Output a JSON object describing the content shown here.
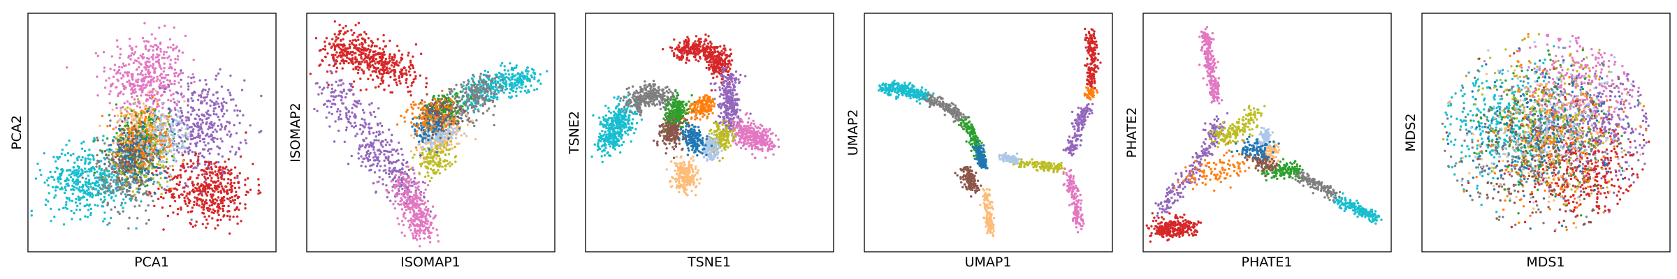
{
  "colors": [
    "#1f77b4",
    "#ff7f0e",
    "#2ca02c",
    "#d62728",
    "#9467bd",
    "#8c564b",
    "#e377c2",
    "#7f7f7f",
    "#bcbd22",
    "#17becf",
    "#aec7e8",
    "#ffbb78"
  ],
  "chart_data": [
    {
      "type": "scatter",
      "xlabel": "PCA1",
      "ylabel": "PCA2",
      "grid": false,
      "ticks": false,
      "xlim": [
        0,
        100
      ],
      "ylim": [
        0,
        100
      ],
      "clusters": [
        {
          "color": "#e377c2",
          "cx": 48,
          "cy": 73,
          "sx": 8,
          "sy": 9,
          "n": 420
        },
        {
          "color": "#9467bd",
          "cx": 70,
          "cy": 52,
          "sx": 8,
          "sy": 10,
          "n": 380
        },
        {
          "color": "#d62728",
          "cx": 73,
          "cy": 26,
          "sx": 9,
          "sy": 7,
          "n": 440
        },
        {
          "color": "#17becf",
          "cx": 25,
          "cy": 30,
          "sx": 9,
          "sy": 7,
          "n": 460
        },
        {
          "color": "#7f7f7f",
          "cx": 40,
          "cy": 33,
          "sx": 6,
          "sy": 8,
          "n": 300
        },
        {
          "color": "#bcbd22",
          "cx": 47,
          "cy": 45,
          "sx": 6,
          "sy": 8,
          "n": 250
        },
        {
          "color": "#ffbb78",
          "cx": 45,
          "cy": 50,
          "sx": 5,
          "sy": 6,
          "n": 180
        },
        {
          "color": "#2ca02c",
          "cx": 45,
          "cy": 45,
          "sx": 6,
          "sy": 7,
          "n": 160
        },
        {
          "color": "#8c564b",
          "cx": 42,
          "cy": 42,
          "sx": 5,
          "sy": 6,
          "n": 150
        },
        {
          "color": "#1f77b4",
          "cx": 46,
          "cy": 43,
          "sx": 6,
          "sy": 6,
          "n": 150
        },
        {
          "color": "#ff7f0e",
          "cx": 48,
          "cy": 47,
          "sx": 6,
          "sy": 6,
          "n": 140
        },
        {
          "color": "#aec7e8",
          "cx": 55,
          "cy": 48,
          "sx": 6,
          "sy": 6,
          "n": 140
        }
      ]
    },
    {
      "type": "scatter",
      "xlabel": "ISOMAP1",
      "ylabel": "ISOMAP2",
      "grid": false,
      "ticks": false,
      "xlim": [
        0,
        100
      ],
      "ylim": [
        0,
        100
      ],
      "clusters": [
        {
          "color": "#d62728",
          "path": [
            [
              10,
              86
            ],
            [
              25,
              82
            ],
            [
              40,
              74
            ]
          ],
          "spread": 4.5,
          "n": 500
        },
        {
          "color": "#9467bd",
          "path": [
            [
              10,
              70
            ],
            [
              22,
              52
            ],
            [
              32,
              38
            ],
            [
              42,
              22
            ]
          ],
          "spread": 4,
          "n": 380
        },
        {
          "color": "#e377c2",
          "path": [
            [
              38,
              30
            ],
            [
              44,
              18
            ],
            [
              48,
              8
            ]
          ],
          "spread": 3.2,
          "n": 330
        },
        {
          "color": "#17becf",
          "path": [
            [
              64,
              64
            ],
            [
              78,
              71
            ],
            [
              90,
              73
            ]
          ],
          "spread": 3,
          "n": 340
        },
        {
          "color": "#7f7f7f",
          "path": [
            [
              55,
              56
            ],
            [
              66,
              64
            ],
            [
              74,
              68
            ]
          ],
          "spread": 4,
          "n": 220
        },
        {
          "color": "#2ca02c",
          "path": [
            [
              52,
              56
            ],
            [
              58,
              62
            ]
          ],
          "spread": 3.5,
          "n": 170
        },
        {
          "color": "#ffbb78",
          "path": [
            [
              48,
              42
            ],
            [
              54,
              48
            ],
            [
              58,
              54
            ]
          ],
          "spread": 3,
          "n": 180
        },
        {
          "color": "#bcbd22",
          "path": [
            [
              48,
              36
            ],
            [
              55,
              42
            ]
          ],
          "spread": 2.8,
          "n": 130
        },
        {
          "color": "#aec7e8",
          "path": [
            [
              50,
              46
            ],
            [
              56,
              52
            ]
          ],
          "spread": 2.8,
          "n": 120
        },
        {
          "color": "#8c564b",
          "path": [
            [
              50,
              56
            ],
            [
              56,
              60
            ]
          ],
          "spread": 3,
          "n": 120
        },
        {
          "color": "#1f77b4",
          "path": [
            [
              46,
              50
            ],
            [
              56,
              56
            ]
          ],
          "spread": 3.5,
          "n": 120
        },
        {
          "color": "#ff7f0e",
          "path": [
            [
              45,
              55
            ],
            [
              56,
              60
            ]
          ],
          "spread": 4,
          "n": 110
        }
      ]
    },
    {
      "type": "scatter",
      "xlabel": "TSNE1",
      "ylabel": "TSNE2",
      "grid": false,
      "ticks": false,
      "xlim": [
        0,
        100
      ],
      "ylim": [
        0,
        100
      ],
      "clusters": [
        {
          "color": "#d62728",
          "path": [
            [
              36,
              84
            ],
            [
              46,
              86
            ],
            [
              54,
              82
            ],
            [
              54,
              74
            ]
          ],
          "spread": 2.3,
          "n": 420
        },
        {
          "color": "#9467bd",
          "path": [
            [
              57,
              74
            ],
            [
              58,
              62
            ],
            [
              58,
              52
            ]
          ],
          "spread": 2.2,
          "n": 320
        },
        {
          "color": "#e377c2",
          "path": [
            [
              62,
              52
            ],
            [
              68,
              48
            ],
            [
              73,
              45
            ]
          ],
          "spread": 2.6,
          "n": 320
        },
        {
          "color": "#17becf",
          "path": [
            [
              8,
              44
            ],
            [
              12,
              52
            ],
            [
              16,
              60
            ]
          ],
          "spread": 3,
          "n": 380
        },
        {
          "color": "#7f7f7f",
          "path": [
            [
              18,
              62
            ],
            [
              26,
              66
            ],
            [
              33,
              64
            ]
          ],
          "spread": 2.4,
          "n": 300
        },
        {
          "color": "#8c564b",
          "path": [
            [
              34,
              48
            ],
            [
              36,
              54
            ]
          ],
          "spread": 2.6,
          "n": 240
        },
        {
          "color": "#2ca02c",
          "path": [
            [
              36,
              56
            ],
            [
              38,
              62
            ]
          ],
          "spread": 2.2,
          "n": 180
        },
        {
          "color": "#ffbb78",
          "path": [
            [
              40,
              36
            ],
            [
              40,
              28
            ]
          ],
          "spread": 2.5,
          "n": 220
        },
        {
          "color": "#bcbd22",
          "path": [
            [
              54,
              44
            ],
            [
              55,
              52
            ]
          ],
          "spread": 2,
          "n": 180
        },
        {
          "color": "#aec7e8",
          "path": [
            [
              50,
              40
            ],
            [
              51,
              46
            ]
          ],
          "spread": 1.7,
          "n": 130
        },
        {
          "color": "#1f77b4",
          "path": [
            [
              42,
              50
            ],
            [
              46,
              44
            ]
          ],
          "spread": 2.1,
          "n": 150
        },
        {
          "color": "#ff7f0e",
          "path": [
            [
              44,
              60
            ],
            [
              50,
              62
            ]
          ],
          "spread": 2.2,
          "n": 150
        }
      ]
    },
    {
      "type": "scatter",
      "xlabel": "UMAP1",
      "ylabel": "UMAP2",
      "grid": false,
      "ticks": false,
      "xlim": [
        0,
        100
      ],
      "ylim": [
        0,
        100
      ],
      "clusters": [
        {
          "color": "#17becf",
          "path": [
            [
              7,
              69
            ],
            [
              17,
              68
            ],
            [
              26,
              64
            ]
          ],
          "spread": 1.4,
          "n": 260
        },
        {
          "color": "#7f7f7f",
          "path": [
            [
              26,
              64
            ],
            [
              34,
              60
            ],
            [
              40,
              55
            ]
          ],
          "spread": 1.3,
          "n": 170
        },
        {
          "color": "#2ca02c",
          "path": [
            [
              40,
              55
            ],
            [
              44,
              48
            ],
            [
              46,
              40
            ]
          ],
          "spread": 1.2,
          "n": 140
        },
        {
          "color": "#1f77b4",
          "path": [
            [
              46,
              44
            ],
            [
              48,
              36
            ]
          ],
          "spread": 1,
          "n": 110
        },
        {
          "color": "#8c564b",
          "path": [
            [
              41,
              34
            ],
            [
              44,
              26
            ]
          ],
          "spread": 1.5,
          "n": 150
        },
        {
          "color": "#ffbb78",
          "path": [
            [
              49,
              26
            ],
            [
              50,
              16
            ],
            [
              51,
              8
            ]
          ],
          "spread": 1,
          "n": 130
        },
        {
          "color": "#aec7e8",
          "path": [
            [
              55,
              40
            ],
            [
              62,
              38
            ]
          ],
          "spread": 0.9,
          "n": 90
        },
        {
          "color": "#bcbd22",
          "path": [
            [
              62,
              37
            ],
            [
              72,
              36
            ],
            [
              80,
              35
            ]
          ],
          "spread": 1,
          "n": 130
        },
        {
          "color": "#e377c2",
          "path": [
            [
              82,
              34
            ],
            [
              85,
              22
            ],
            [
              87,
              10
            ]
          ],
          "spread": 1.1,
          "n": 150
        },
        {
          "color": "#9467bd",
          "path": [
            [
              82,
              40
            ],
            [
              86,
              52
            ],
            [
              90,
              62
            ]
          ],
          "spread": 1.3,
          "n": 160
        },
        {
          "color": "#ff7f0e",
          "path": [
            [
              90,
              65
            ],
            [
              92,
              68
            ]
          ],
          "spread": 1,
          "n": 50
        },
        {
          "color": "#d62728",
          "path": [
            [
              91,
              70
            ],
            [
              92,
              82
            ],
            [
              91,
              93
            ]
          ],
          "spread": 1.1,
          "n": 190
        }
      ]
    },
    {
      "type": "scatter",
      "xlabel": "PHATE1",
      "ylabel": "PHATE2",
      "grid": false,
      "ticks": false,
      "xlim": [
        0,
        100
      ],
      "ylim": [
        0,
        100
      ],
      "clusters": [
        {
          "color": "#e377c2",
          "path": [
            [
              25,
              92
            ],
            [
              27,
              78
            ],
            [
              29,
              64
            ]
          ],
          "spread": 1.2,
          "n": 230
        },
        {
          "color": "#9467bd",
          "path": [
            [
              8,
              18
            ],
            [
              18,
              32
            ],
            [
              28,
              46
            ],
            [
              30,
              54
            ]
          ],
          "spread": 1.8,
          "n": 240
        },
        {
          "color": "#d62728",
          "path": [
            [
              5,
              10
            ],
            [
              12,
              10
            ],
            [
              20,
              11
            ]
          ],
          "spread": 2.2,
          "n": 260
        },
        {
          "color": "#17becf",
          "path": [
            [
              78,
              22
            ],
            [
              86,
              18
            ],
            [
              94,
              14
            ]
          ],
          "spread": 1.1,
          "n": 180
        },
        {
          "color": "#7f7f7f",
          "path": [
            [
              62,
              32
            ],
            [
              70,
              28
            ],
            [
              78,
              24
            ]
          ],
          "spread": 1.2,
          "n": 140
        },
        {
          "color": "#2ca02c",
          "path": [
            [
              48,
              34
            ],
            [
              56,
              34
            ],
            [
              62,
              34
            ]
          ],
          "spread": 1.8,
          "n": 130
        },
        {
          "color": "#bcbd22",
          "path": [
            [
              30,
              48
            ],
            [
              38,
              50
            ],
            [
              46,
              58
            ]
          ],
          "spread": 2,
          "n": 170
        },
        {
          "color": "#aec7e8",
          "path": [
            [
              48,
              44
            ],
            [
              50,
              50
            ]
          ],
          "spread": 1.4,
          "n": 90
        },
        {
          "color": "#ffbb78",
          "path": [
            [
              50,
              38
            ],
            [
              52,
              44
            ]
          ],
          "spread": 1.5,
          "n": 90
        },
        {
          "color": "#ff7f0e",
          "path": [
            [
              18,
              30
            ],
            [
              32,
              34
            ],
            [
              42,
              38
            ]
          ],
          "spread": 3.5,
          "n": 110
        },
        {
          "color": "#8c564b",
          "path": [
            [
              44,
              40
            ],
            [
              52,
              36
            ]
          ],
          "spread": 1.6,
          "n": 80
        },
        {
          "color": "#1f77b4",
          "path": [
            [
              40,
              44
            ],
            [
              50,
              42
            ]
          ],
          "spread": 2,
          "n": 90
        }
      ]
    },
    {
      "type": "scatter",
      "xlabel": "MDS1",
      "ylabel": "MDS2",
      "grid": false,
      "ticks": false,
      "xlim": [
        0,
        100
      ],
      "ylim": [
        0,
        100
      ],
      "disc": {
        "cx": 50,
        "cy": 50,
        "r": 42
      },
      "clusters": [
        {
          "color": "#17becf",
          "cx": 32,
          "cy": 52,
          "sx": 12,
          "sy": 12,
          "n": 380
        },
        {
          "color": "#e377c2",
          "cx": 62,
          "cy": 68,
          "sx": 12,
          "sy": 11,
          "n": 340
        },
        {
          "color": "#9467bd",
          "cx": 70,
          "cy": 52,
          "sx": 11,
          "sy": 11,
          "n": 300
        },
        {
          "color": "#d62728",
          "cx": 64,
          "cy": 32,
          "sx": 11,
          "sy": 10,
          "n": 340
        },
        {
          "color": "#7f7f7f",
          "cx": 42,
          "cy": 44,
          "sx": 14,
          "sy": 14,
          "n": 220
        },
        {
          "color": "#2ca02c",
          "cx": 48,
          "cy": 50,
          "sx": 14,
          "sy": 14,
          "n": 200
        },
        {
          "color": "#bcbd22",
          "cx": 52,
          "cy": 56,
          "sx": 14,
          "sy": 14,
          "n": 200
        },
        {
          "color": "#ffbb78",
          "cx": 50,
          "cy": 48,
          "sx": 14,
          "sy": 14,
          "n": 180
        },
        {
          "color": "#8c564b",
          "cx": 46,
          "cy": 40,
          "sx": 14,
          "sy": 14,
          "n": 180
        },
        {
          "color": "#1f77b4",
          "cx": 50,
          "cy": 50,
          "sx": 15,
          "sy": 15,
          "n": 200
        },
        {
          "color": "#ff7f0e",
          "cx": 52,
          "cy": 46,
          "sx": 15,
          "sy": 15,
          "n": 200
        },
        {
          "color": "#aec7e8",
          "cx": 54,
          "cy": 52,
          "sx": 14,
          "sy": 14,
          "n": 180
        }
      ]
    }
  ]
}
